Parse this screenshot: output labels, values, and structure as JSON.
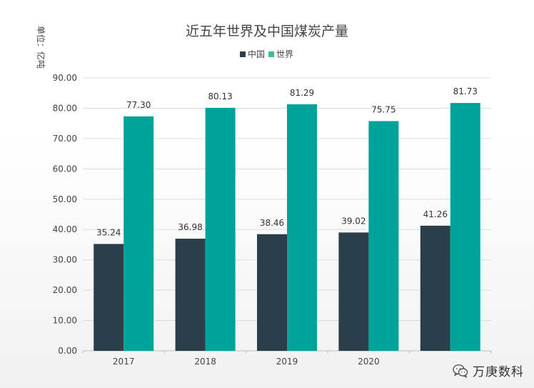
{
  "chart_data": {
    "type": "bar",
    "title": "近五年世界及中国煤炭产量",
    "ylabel": "单位：亿吨",
    "xlabel": "",
    "categories": [
      "2017",
      "2018",
      "2019",
      "2020",
      ""
    ],
    "series": [
      {
        "name": "中国",
        "color": "#2b3f4a",
        "values": [
          35.24,
          36.98,
          38.46,
          39.02,
          41.26
        ],
        "labels": [
          "35.24",
          "36.98",
          "38.46",
          "39.02",
          "41.26"
        ]
      },
      {
        "name": "世界",
        "color": "#00a39a",
        "values": [
          77.3,
          80.13,
          81.29,
          75.75,
          81.73
        ],
        "labels": [
          "77.30",
          "80.13",
          "81.29",
          "75.75",
          "81.73"
        ]
      }
    ],
    "ylim": [
      0,
      90
    ],
    "yticks": [
      "0.00",
      "10.00",
      "20.00",
      "30.00",
      "40.00",
      "50.00",
      "60.00",
      "70.00",
      "80.00",
      "90.00"
    ],
    "ytick_values": [
      0,
      10,
      20,
      30,
      40,
      50,
      60,
      70,
      80,
      90
    ],
    "grid": true,
    "legend": "top-center",
    "legend_swatch_colors": [
      "#2b3f4a",
      "#3dbf8a"
    ]
  },
  "watermark": {
    "text": "万庚数科",
    "icon": "wechat-icon"
  }
}
